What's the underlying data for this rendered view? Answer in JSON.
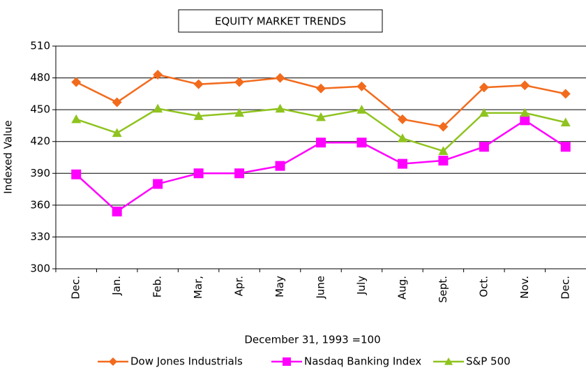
{
  "chart_data": {
    "type": "line",
    "title": "EQUITY MARKET TRENDS",
    "x_label": "December 31, 1993 =100",
    "y_label": "Indexed Value",
    "categories": [
      "Dec.",
      "Jan.",
      "Feb.",
      "Mar,",
      "Apr.",
      "May",
      "June",
      "July",
      "Aug.",
      "Sept.",
      "Oct.",
      "Nov.",
      "Dec."
    ],
    "series": [
      {
        "name": "Dow Jones Industrials",
        "color": "#f26b1d",
        "marker": "diamond",
        "values": [
          476,
          457,
          483,
          474,
          476,
          480,
          470,
          472,
          441,
          434,
          471,
          473,
          465
        ]
      },
      {
        "name": "Nasdaq Banking Index",
        "color": "#ff00ff",
        "marker": "square",
        "values": [
          389,
          354,
          380,
          390,
          390,
          397,
          419,
          419,
          399,
          402,
          415,
          440,
          415
        ]
      },
      {
        "name": "S&P 500",
        "color": "#8fc31f",
        "marker": "triangle",
        "values": [
          441,
          428,
          451,
          444,
          447,
          451,
          443,
          450,
          423,
          411,
          447,
          447,
          438
        ]
      }
    ],
    "ylim": [
      300,
      510
    ],
    "yticks": [
      300,
      330,
      360,
      390,
      420,
      450,
      480,
      510
    ],
    "grid": true,
    "legend": "bottom"
  }
}
